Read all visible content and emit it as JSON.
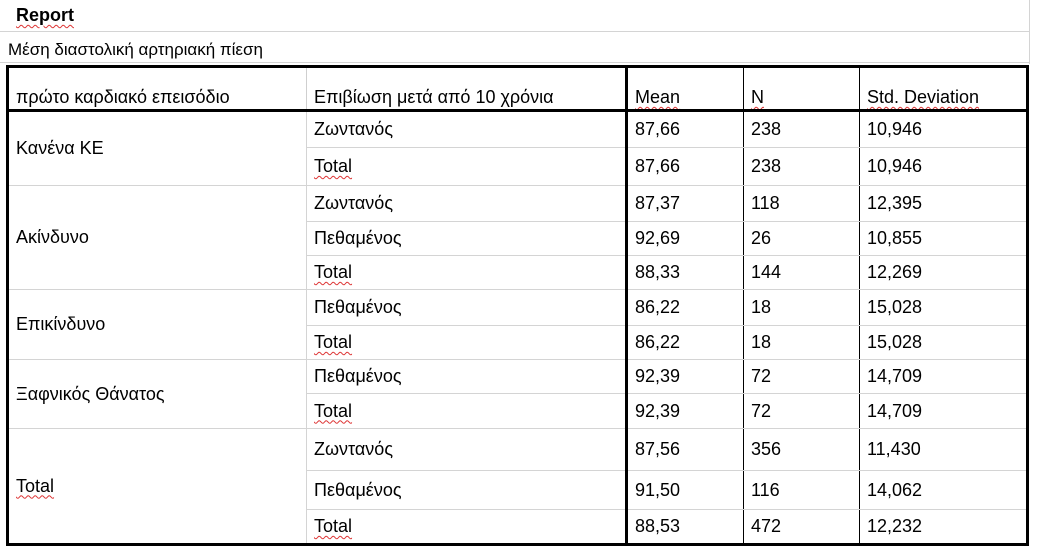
{
  "report": {
    "title": "Report",
    "subtitle": "Μέση διαστολική αρτηριακή πίεση",
    "columns": {
      "category": "πρώτο καρδιακό επεισόδιο",
      "survival": "Επιβίωση μετά από 10 χρόνια",
      "mean": "Mean",
      "n": "N",
      "sd": "Std. Deviation"
    },
    "groups": [
      {
        "label": "Κανένα ΚΕ",
        "rows": [
          {
            "survival": "Ζωντανός",
            "mean": "87,66",
            "n": "238",
            "sd": "10,946"
          },
          {
            "survival": "Total",
            "mean": "87,66",
            "n": "238",
            "sd": "10,946"
          }
        ]
      },
      {
        "label": "Ακίνδυνο",
        "rows": [
          {
            "survival": "Ζωντανός",
            "mean": "87,37",
            "n": "118",
            "sd": "12,395"
          },
          {
            "survival": "Πεθαμένος",
            "mean": "92,69",
            "n": "26",
            "sd": "10,855"
          },
          {
            "survival": "Total",
            "mean": "88,33",
            "n": "144",
            "sd": "12,269"
          }
        ]
      },
      {
        "label": "Επικίνδυνο",
        "rows": [
          {
            "survival": "Πεθαμένος",
            "mean": "86,22",
            "n": "18",
            "sd": "15,028"
          },
          {
            "survival": "Total",
            "mean": "86,22",
            "n": "18",
            "sd": "15,028"
          }
        ]
      },
      {
        "label": "Ξαφνικός Θάνατος",
        "rows": [
          {
            "survival": "Πεθαμένος",
            "mean": "92,39",
            "n": "72",
            "sd": "14,709"
          },
          {
            "survival": "Total",
            "mean": "92,39",
            "n": "72",
            "sd": "14,709"
          }
        ]
      },
      {
        "label": "Total",
        "rows": [
          {
            "survival": "Ζωντανός",
            "mean": "87,56",
            "n": "356",
            "sd": "11,430"
          },
          {
            "survival": "Πεθαμένος",
            "mean": "91,50",
            "n": "116",
            "sd": "14,062"
          },
          {
            "survival": "Total",
            "mean": "88,53",
            "n": "472",
            "sd": "12,232"
          }
        ]
      }
    ]
  }
}
